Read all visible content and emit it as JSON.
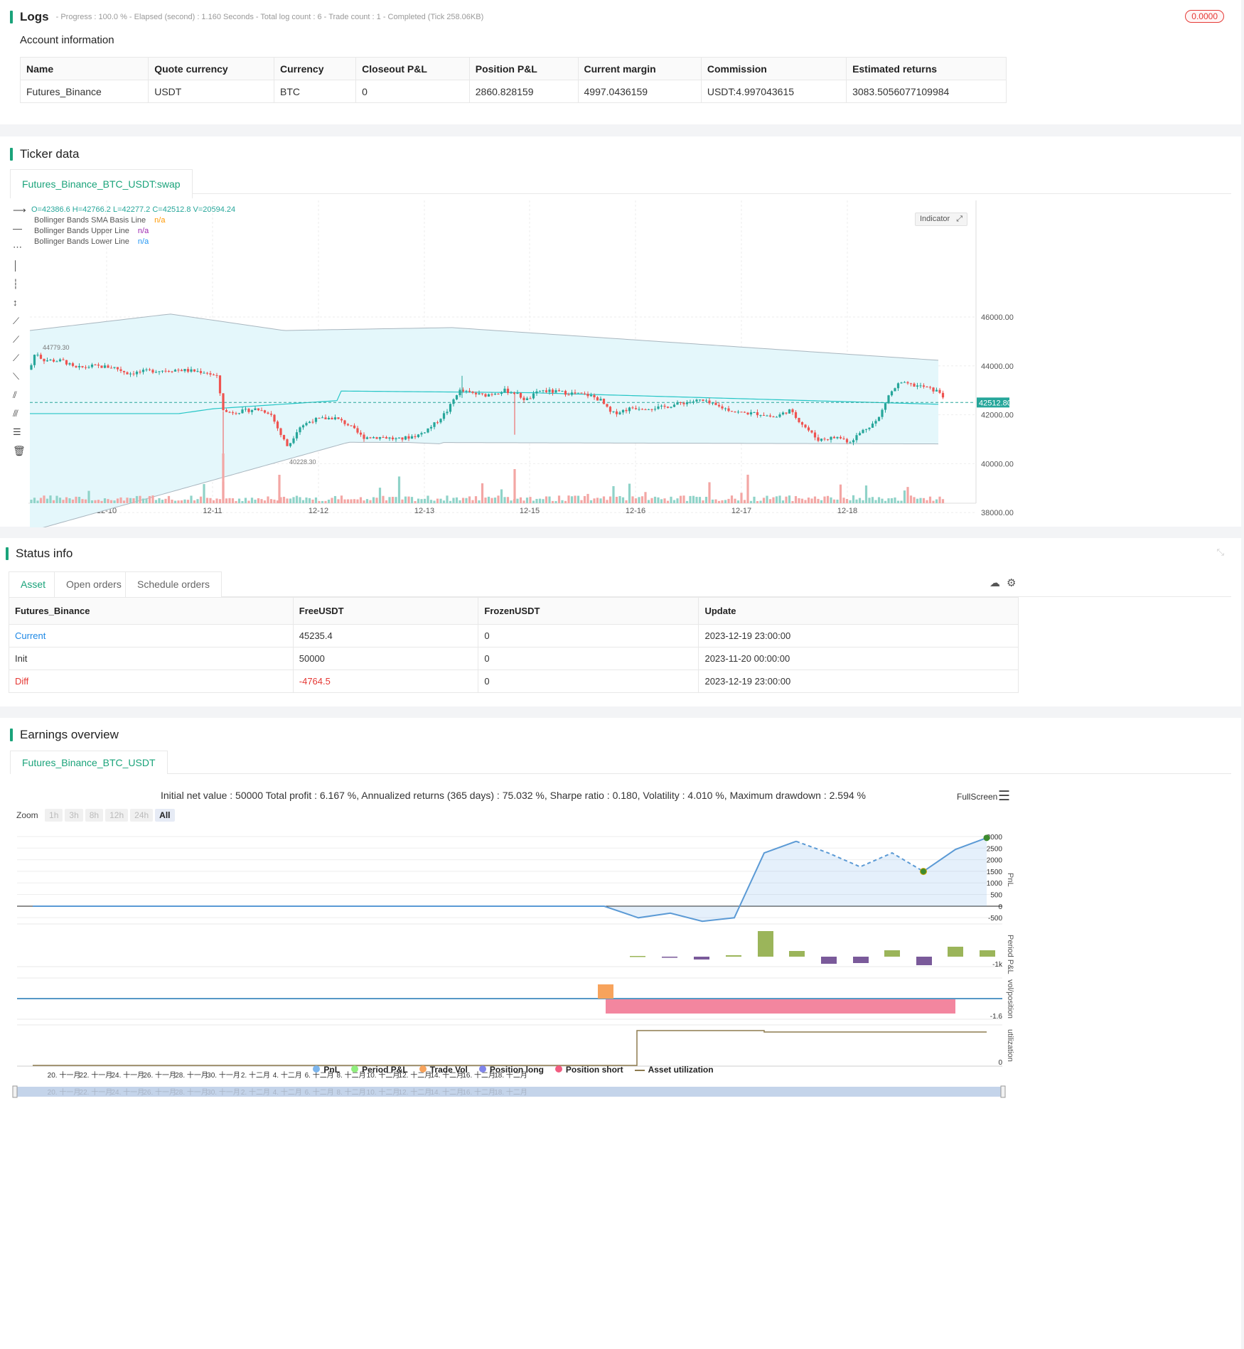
{
  "logs": {
    "title": "Logs",
    "status_line": "- Progress : 100.0 % - Elapsed (second) : 1.160  Seconds - Total log count : 6 - Trade count : 1 - Completed (Tick 258.06KB)",
    "badge": "0.0000"
  },
  "account": {
    "title": "Account information",
    "headers": [
      "Name",
      "Quote currency",
      "Currency",
      "Closeout P&L",
      "Position P&L",
      "Current margin",
      "Commission",
      "Estimated returns"
    ],
    "row": [
      "Futures_Binance",
      "USDT",
      "BTC",
      "0",
      "2860.828159",
      "4997.0436159",
      "USDT:4.997043615",
      "3083.5056077109984"
    ]
  },
  "ticker": {
    "title": "Ticker data",
    "tab": "Futures_Binance_BTC_USDT:swap",
    "ohlc": "O=42386.6 H=42766.2 L=42277.2 C=42512.8 V=20594.24",
    "legend": [
      {
        "name": "Bollinger Bands SMA Basis Line",
        "value": "n/a",
        "color": "#ff9800"
      },
      {
        "name": "Bollinger Bands Upper Line",
        "value": "n/a",
        "color": "#9c27b0"
      },
      {
        "name": "Bollinger Bands Lower Line",
        "value": "n/a",
        "color": "#2196f3"
      }
    ],
    "indicator_btn": "Indicator",
    "price_ticks": [
      "46000.00",
      "44000.00",
      "42000.00",
      "40000.00",
      "38000.00"
    ],
    "last_price": "42512.80",
    "high_marker": "44779.30",
    "low_marker": "40228.30",
    "date_ticks": [
      "12-10",
      "12-11",
      "12-12",
      "12-13",
      "12-15",
      "12-16",
      "12-17",
      "12-18"
    ],
    "colors": {
      "up": "#26a69a",
      "down": "#ef5350",
      "band_fill": "#e4f7fb",
      "basis": "#26c6c6"
    }
  },
  "status": {
    "title": "Status info",
    "tabs": [
      "Asset",
      "Open orders",
      "Schedule orders"
    ],
    "headers": [
      "Futures_Binance",
      "FreeUSDT",
      "FrozenUSDT",
      "Update"
    ],
    "rows": [
      {
        "label": "Current",
        "free": "45235.4",
        "frozen": "0",
        "update": "2023-12-19 23:00:00"
      },
      {
        "label": "Init",
        "free": "50000",
        "frozen": "0",
        "update": "2023-11-20 00:00:00"
      },
      {
        "label": "Diff",
        "free": "-4764.5",
        "frozen": "0",
        "update": "2023-12-19 23:00:00"
      }
    ]
  },
  "earnings": {
    "title": "Earnings overview",
    "tab": "Futures_Binance_BTC_USDT",
    "summary": "Initial net value : 50000 Total profit : 6.167 %, Annualized returns (365 days) : 75.032 %, Sharpe ratio : 0.180, Volatility : 4.010 %, Maximum drawdown : 2.594 %",
    "fullscreen": "FullScreen",
    "zoom_label": "Zoom",
    "zoom_buttons": [
      "1h",
      "3h",
      "8h",
      "12h",
      "24h",
      "All"
    ],
    "pnl_ticks": [
      "3000",
      "2500",
      "2000",
      "1500",
      "1000",
      "500",
      "0",
      "-500"
    ],
    "axis_titles": [
      "PnL",
      "Period P&L",
      "vol/position",
      "utilization"
    ],
    "period_tick": "-1k",
    "vol_tick": "-1.6",
    "util_tick": "0",
    "date_ticks": [
      "20. 十一月",
      "22. 十一月",
      "24. 十一月",
      "26. 十一月",
      "28. 十一月",
      "30. 十一月",
      "2. 十二月",
      "4. 十二月",
      "6. 十二月",
      "8. 十二月",
      "10. 十二月",
      "12. 十二月",
      "14. 十二月",
      "16. 十二月",
      "18. 十二月"
    ],
    "legend": [
      {
        "name": "PnL",
        "color": "#7cb5ec"
      },
      {
        "name": "Period P&L",
        "color": "#90ed7d"
      },
      {
        "name": "Trade Vol",
        "color": "#f7a35c"
      },
      {
        "name": "Position long",
        "color": "#8085e9"
      },
      {
        "name": "Position short",
        "color": "#f15c80"
      },
      {
        "name": "Asset utilization",
        "color": "#8d7b4f"
      }
    ]
  }
}
